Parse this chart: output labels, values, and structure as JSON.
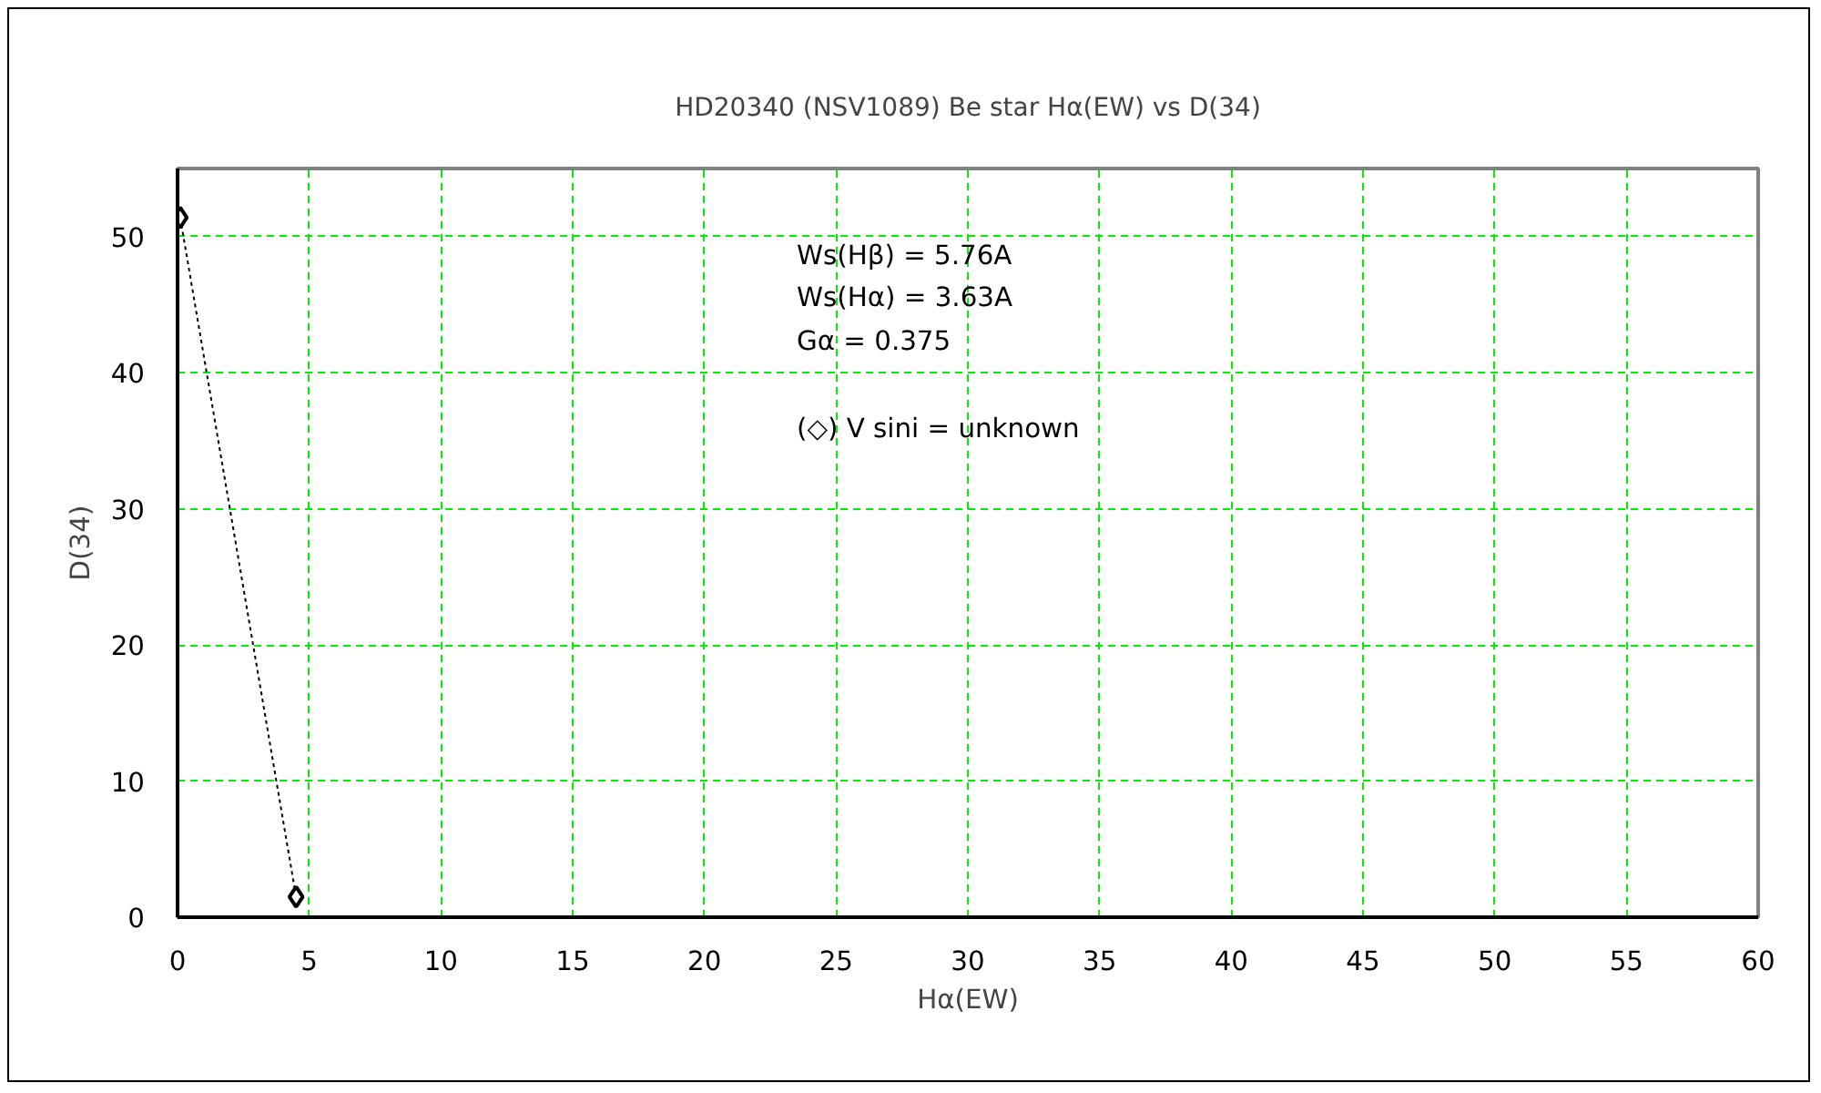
{
  "chart_data": {
    "type": "line",
    "title": "HD20340 (NSV1089) Be star Hα(EW) vs D(34)",
    "xlabel": "Hα(EW)",
    "ylabel": "D(34)",
    "annotations": [
      "Ws(Hβ) = 5.76A",
      "Ws(Hα) = 3.63A",
      "Gα = 0.375",
      "(◇) V sini = unknown"
    ],
    "x": [
      0.1,
      4.5
    ],
    "series": [
      {
        "color": "#000000",
        "values": [
          51.4,
          1.5
        ]
      }
    ],
    "xlim": [
      0,
      60
    ],
    "ylim": [
      0,
      55
    ],
    "xticks": [
      0,
      5,
      10,
      15,
      20,
      25,
      30,
      35,
      40,
      45,
      50,
      55,
      60
    ],
    "yticks": [
      0,
      10,
      20,
      30,
      40,
      50
    ],
    "grid": true,
    "marker": "diamond",
    "line_style": "dotted"
  }
}
